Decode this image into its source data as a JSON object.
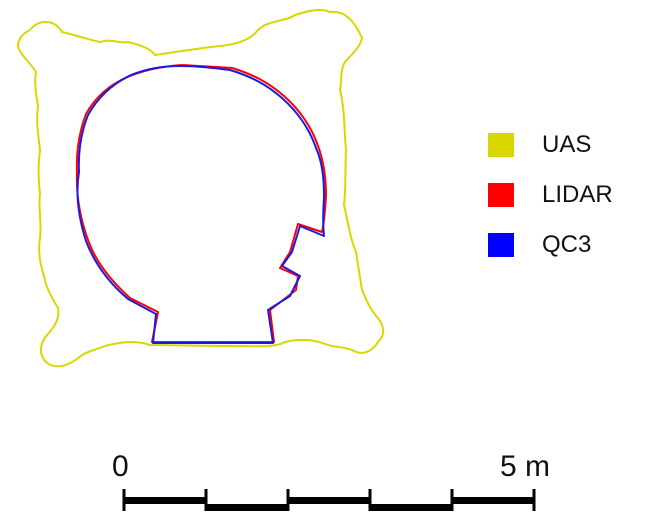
{
  "legend": [
    {
      "label": "UAS",
      "color": "#d8d800"
    },
    {
      "label": "LIDAR",
      "color": "#ff0000"
    },
    {
      "label": "QC3",
      "color": "#0000ff"
    }
  ],
  "scale_bar": {
    "start_label": "0",
    "end_label": "5 m",
    "segments": 5
  },
  "colors": {
    "uas": "#d8d800",
    "lidar": "#ff0000",
    "qc3": "#1a1ae6",
    "scale": "#000000"
  }
}
